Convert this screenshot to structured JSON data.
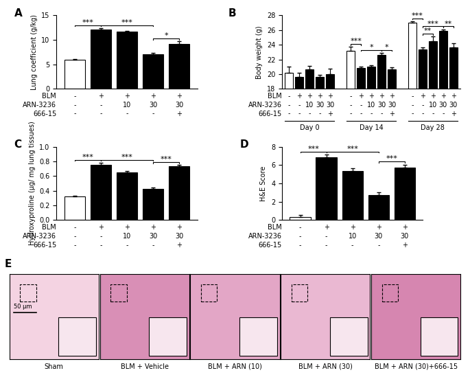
{
  "chart_data": [
    {
      "type": "bar",
      "title": "A",
      "y_label": "Lung coefficient (g/kg)",
      "categories": [
        null,
        null,
        null,
        null,
        null
      ],
      "values": [
        5.9,
        12.1,
        11.7,
        7.1,
        9.1
      ],
      "errors": [
        0.2,
        0.3,
        0.2,
        0.2,
        0.6
      ],
      "colors": [
        "#ffffff",
        "#000000",
        "#000000",
        "#000000",
        "#000000"
      ],
      "ylim": [
        0,
        15
      ],
      "yticks": [
        0,
        5,
        10,
        15
      ],
      "comparisons": [
        {
          "groups": [
            0,
            1
          ],
          "label": "***"
        },
        {
          "groups": [
            1,
            3
          ],
          "label": "***"
        },
        {
          "groups": [
            3,
            4
          ],
          "label": "*"
        }
      ],
      "conditions": [
        {
          "name": "BLM",
          "values": [
            "-",
            "+",
            "+",
            "+",
            "+"
          ]
        },
        {
          "name": "ARN-3236",
          "values": [
            "-",
            "-",
            "10",
            "30",
            "30"
          ]
        },
        {
          "name": "666-15",
          "values": [
            "-",
            "-",
            "-",
            "-",
            "+"
          ]
        }
      ]
    },
    {
      "type": "bar",
      "title": "B",
      "y_label": "Body weight (g)",
      "colors": [
        "#ffffff",
        "#000000",
        "#000000",
        "#000000",
        "#000000"
      ],
      "ylim": [
        18,
        28
      ],
      "yticks": [
        18,
        20,
        22,
        24,
        26,
        28
      ],
      "groups": [
        {
          "name": "Day 0",
          "values": [
            20.2,
            19.6,
            20.6,
            19.6,
            20.0
          ],
          "errors": [
            0.8,
            0.6,
            0.5,
            0.3,
            0.7
          ],
          "comparisons": []
        },
        {
          "name": "Day 14",
          "values": [
            23.2,
            20.8,
            21.0,
            22.6,
            20.6
          ],
          "errors": [
            0.5,
            0.2,
            0.2,
            0.3,
            0.3
          ],
          "comparisons": [
            {
              "groups": [
                0,
                1
              ],
              "label": "***"
            },
            {
              "groups": [
                1,
                3
              ],
              "label": "*"
            },
            {
              "groups": [
                3,
                4
              ],
              "label": "*"
            }
          ]
        },
        {
          "name": "Day 28",
          "values": [
            27.0,
            23.4,
            24.5,
            25.9,
            23.6
          ],
          "errors": [
            0.2,
            0.2,
            0.6,
            0.2,
            0.6
          ],
          "comparisons": [
            {
              "groups": [
                0,
                1
              ],
              "label": "***"
            },
            {
              "groups": [
                1,
                2
              ],
              "label": "**"
            },
            {
              "groups": [
                1,
                3
              ],
              "label": "***"
            },
            {
              "groups": [
                3,
                4
              ],
              "label": "**"
            }
          ]
        }
      ],
      "conditions": [
        {
          "name": "BLM",
          "values": [
            "-",
            "+",
            "+",
            "+",
            "+"
          ]
        },
        {
          "name": "ARN-3236",
          "values": [
            "-",
            "-",
            "10",
            "30",
            "30"
          ]
        },
        {
          "name": "666-15",
          "values": [
            "-",
            "-",
            "-",
            "-",
            "+"
          ]
        }
      ]
    },
    {
      "type": "bar",
      "title": "C",
      "y_label": "Hydroxyproline (μg/ mg lung tissues)",
      "categories": [
        null,
        null,
        null,
        null,
        null
      ],
      "values": [
        0.32,
        0.75,
        0.65,
        0.42,
        0.73
      ],
      "errors": [
        0.01,
        0.03,
        0.02,
        0.02,
        0.02
      ],
      "colors": [
        "#ffffff",
        "#000000",
        "#000000",
        "#000000",
        "#000000"
      ],
      "ylim": [
        0,
        1.0
      ],
      "yticks": [
        {
          "value": 0,
          "label": "0.0"
        },
        0.2,
        0.4,
        0.6,
        0.8,
        {
          "value": 1.0,
          "label": "1.0"
        }
      ],
      "comparisons": [
        {
          "groups": [
            0,
            1
          ],
          "label": "***"
        },
        {
          "groups": [
            1,
            3
          ],
          "label": "***"
        },
        {
          "groups": [
            3,
            4
          ],
          "label": "***"
        }
      ],
      "conditions": [
        {
          "name": "BLM",
          "values": [
            "-",
            "+",
            "+",
            "+",
            "+"
          ]
        },
        {
          "name": "ARN-3236",
          "values": [
            "-",
            "-",
            "10",
            "30",
            "30"
          ]
        },
        {
          "name": "666-15",
          "values": [
            "-",
            "-",
            "-",
            "-",
            "+"
          ]
        }
      ]
    },
    {
      "type": "bar",
      "title": "D",
      "y_label": "H&E Score",
      "categories": [
        null,
        null,
        null,
        null,
        null
      ],
      "values": [
        0.3,
        6.85,
        5.35,
        2.7,
        5.7
      ],
      "errors": [
        0.25,
        0.3,
        0.3,
        0.3,
        0.35
      ],
      "colors": [
        "#ffffff",
        "#000000",
        "#000000",
        "#000000",
        "#000000"
      ],
      "ylim": [
        0,
        8
      ],
      "yticks": [
        0,
        2,
        4,
        6,
        8
      ],
      "comparisons": [
        {
          "groups": [
            0,
            1
          ],
          "label": "***"
        },
        {
          "groups": [
            1,
            3
          ],
          "label": "***"
        },
        {
          "groups": [
            3,
            4
          ],
          "label": "***"
        }
      ],
      "conditions": [
        {
          "name": "BLM",
          "values": [
            "-",
            "+",
            "+",
            "+",
            "+"
          ]
        },
        {
          "name": "ARN-3236",
          "values": [
            "-",
            "-",
            "10",
            "30",
            "30"
          ]
        },
        {
          "name": "666-15",
          "values": [
            "-",
            "-",
            "-",
            "-",
            "+"
          ]
        }
      ]
    }
  ],
  "images": {
    "title": "E",
    "scale_bar": "50 μm",
    "labels": [
      "Sham",
      "BLM + Vehicle",
      "BLM + ARN (10)",
      "BLM + ARN (30)",
      "BLM + ARN (30)+666-15"
    ]
  }
}
